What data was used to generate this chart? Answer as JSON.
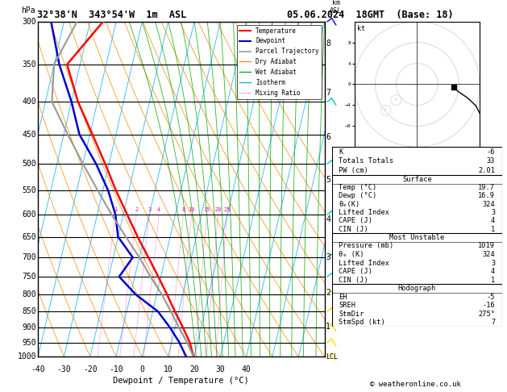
{
  "title_left": "32°38'N  343°54'W  1m  ASL",
  "title_right": "05.06.2024  18GMT  (Base: 18)",
  "xlabel": "Dewpoint / Temperature (°C)",
  "footer": "© weatheronline.co.uk",
  "pressure_ticks": [
    300,
    350,
    400,
    450,
    500,
    550,
    600,
    650,
    700,
    750,
    800,
    850,
    900,
    950,
    1000
  ],
  "km_ticks": [
    1,
    2,
    3,
    4,
    5,
    6,
    7,
    8
  ],
  "km_pressures": [
    898,
    795,
    700,
    610,
    530,
    455,
    387,
    325
  ],
  "T_min": -40,
  "T_max": 40,
  "p_min": 300,
  "p_max": 1000,
  "SKEW": 30,
  "temperature_profile": {
    "pressure": [
      1000,
      950,
      900,
      850,
      800,
      750,
      700,
      650,
      600,
      550,
      500,
      450,
      400,
      350,
      300
    ],
    "temp": [
      19.7,
      17.0,
      13.0,
      8.5,
      4.0,
      -1.0,
      -6.5,
      -12.5,
      -18.5,
      -25.0,
      -31.5,
      -39.0,
      -47.5,
      -55.0,
      -45.0
    ]
  },
  "dewpoint_profile": {
    "pressure": [
      1000,
      950,
      900,
      850,
      800,
      750,
      700,
      650,
      600,
      550,
      500,
      450,
      400,
      350,
      300
    ],
    "temp": [
      16.9,
      13.0,
      8.0,
      2.0,
      -8.0,
      -16.0,
      -12.5,
      -20.0,
      -23.0,
      -28.0,
      -35.0,
      -44.0,
      -50.0,
      -58.0,
      -65.0
    ]
  },
  "parcel_profile": {
    "pressure": [
      1000,
      950,
      900,
      850,
      800,
      750,
      700,
      650,
      600,
      550,
      500,
      450,
      400,
      350,
      300
    ],
    "temp": [
      19.7,
      16.0,
      11.5,
      7.0,
      2.0,
      -4.0,
      -10.0,
      -17.0,
      -24.5,
      -32.0,
      -40.0,
      -48.5,
      -57.5,
      -60.0,
      -55.0
    ]
  },
  "mixing_ratio_values": [
    1,
    2,
    3,
    4,
    8,
    10,
    15,
    20,
    25
  ],
  "colors": {
    "temperature": "#ff0000",
    "dewpoint": "#0000cc",
    "parcel": "#999999",
    "dry_adiabat": "#ff8800",
    "wet_adiabat": "#00aa00",
    "isotherm": "#00aaff",
    "mixing_ratio": "#ff00aa",
    "background": "#ffffff",
    "grid": "#000000"
  }
}
